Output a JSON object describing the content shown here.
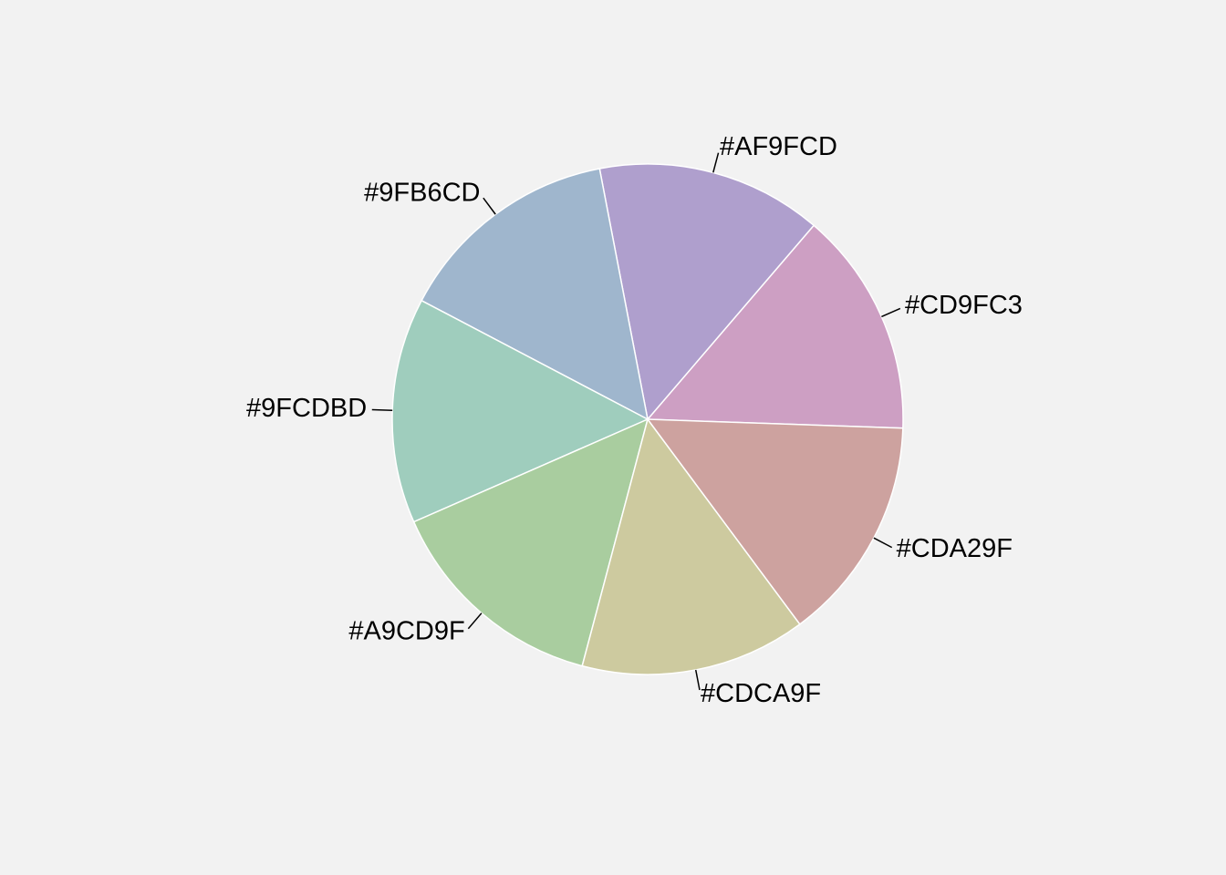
{
  "chart_data": {
    "type": "pie",
    "title": "",
    "direction": "counterclockwise",
    "labels": [
      "#CD9FC3",
      "#AF9FCD",
      "#9FB6CD",
      "#9FCDBD",
      "#A9CD9F",
      "#CDCA9F",
      "#CDA29F"
    ],
    "values": [
      1,
      1,
      1,
      1,
      1,
      1,
      1
    ],
    "colors": [
      "#CD9FC3",
      "#AF9FCD",
      "#9FB6CD",
      "#9FCDBD",
      "#A9CD9F",
      "#CDCA9F",
      "#CDA29F"
    ],
    "legend": "none",
    "background": "#F2F2F2",
    "slice_border_color": "#FFFFFF"
  }
}
